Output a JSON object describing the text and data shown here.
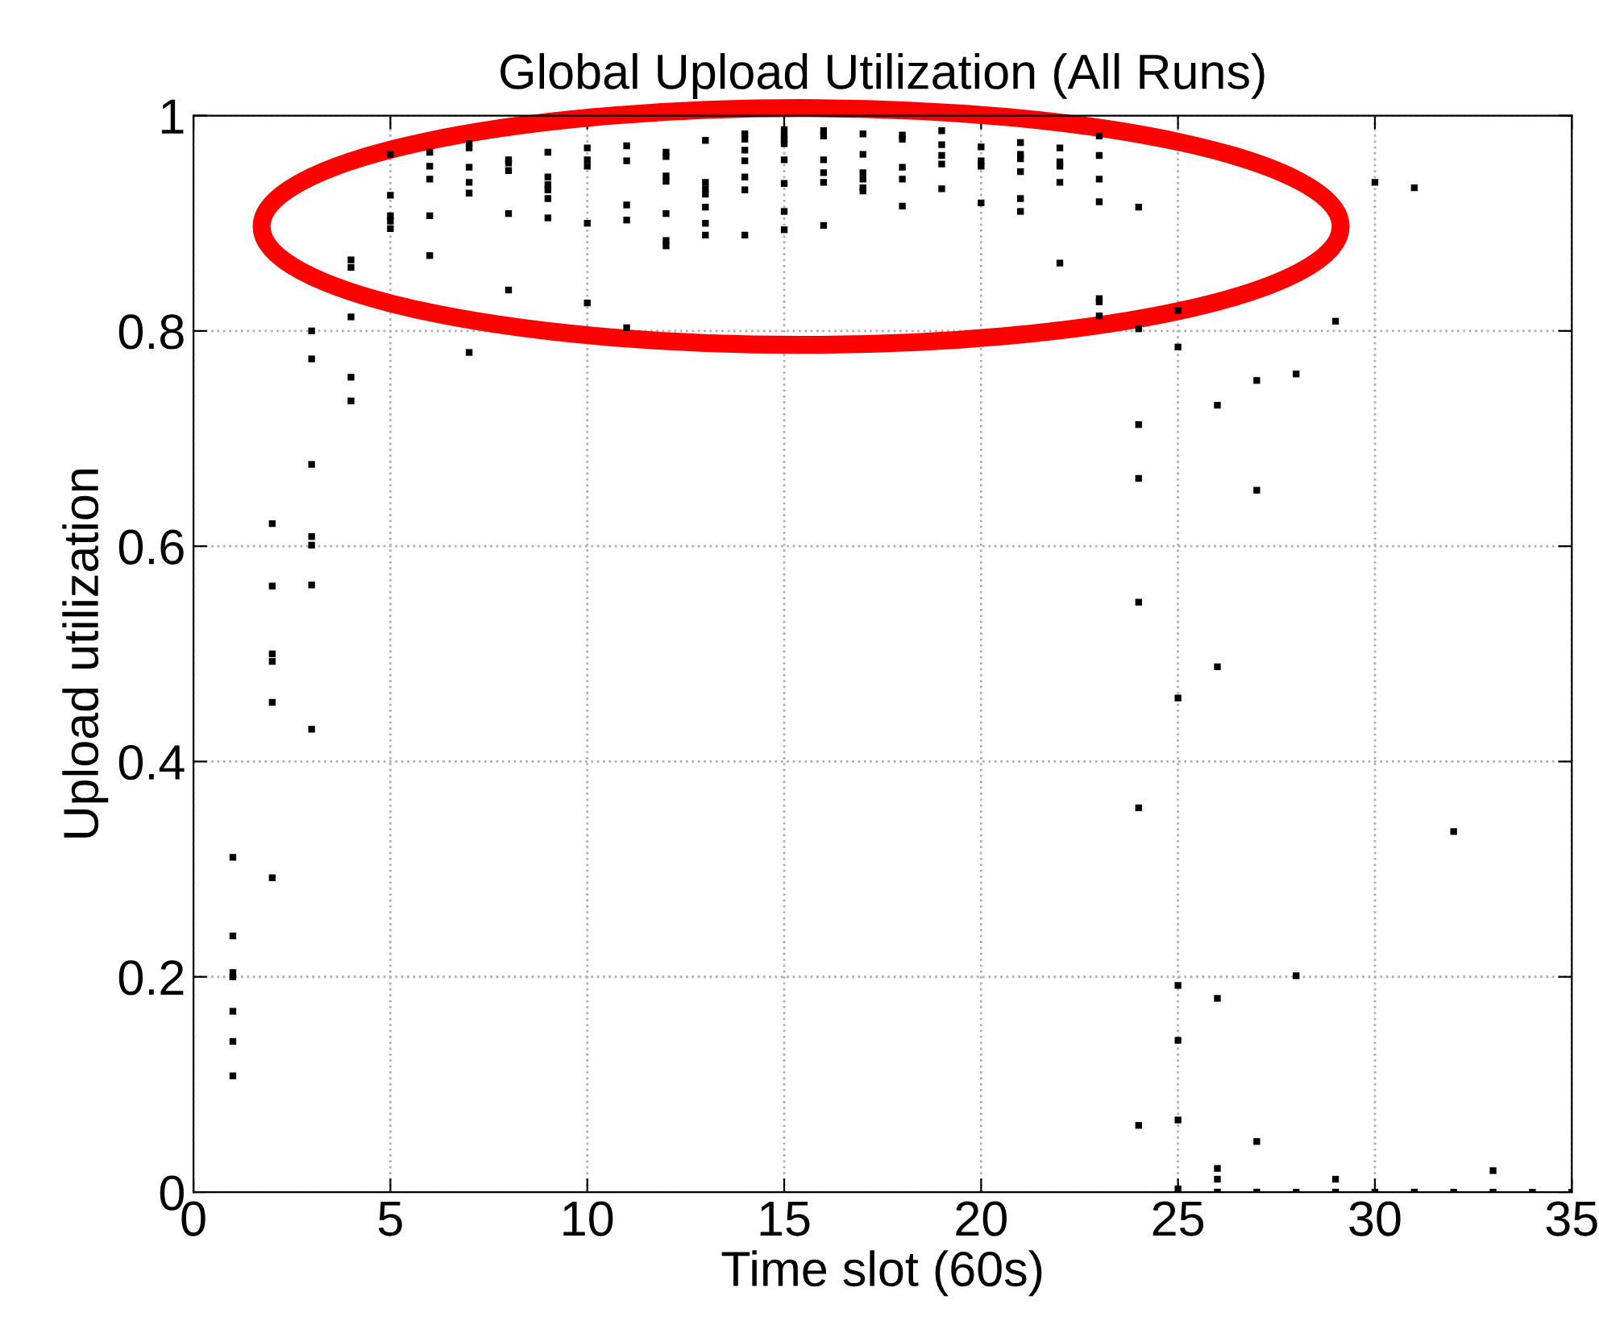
{
  "chart_data": {
    "type": "scatter",
    "title": "Global Upload Utilization (All Runs)",
    "xlabel": "Time slot (60s)",
    "ylabel": "Upload utilization",
    "xlim": [
      0,
      35
    ],
    "xticks": [
      0,
      5,
      10,
      15,
      20,
      25,
      30,
      35
    ],
    "ylim": [
      0,
      1
    ],
    "yticks": [
      0,
      0.2,
      0.4,
      0.6,
      0.8,
      1
    ],
    "grid": true,
    "marker": "square",
    "legend": false,
    "series": [
      {
        "color": "#000000",
        "x": [
          1,
          1,
          1,
          1,
          1,
          1,
          1,
          2,
          2,
          2,
          2,
          2,
          2,
          3,
          3,
          3,
          3,
          3,
          3,
          3,
          4,
          4,
          4,
          4,
          4,
          5,
          5,
          5,
          5,
          5,
          6,
          6,
          6,
          6,
          6,
          7,
          7,
          7,
          7,
          7,
          7,
          8,
          8,
          8,
          8,
          8,
          9,
          9,
          9,
          9,
          9,
          9,
          10,
          10,
          10,
          10,
          10,
          11,
          11,
          11,
          11,
          11,
          12,
          12,
          12,
          12,
          12,
          12,
          12,
          13,
          13,
          13,
          13,
          13,
          13,
          13,
          14,
          14,
          14,
          14,
          14,
          14,
          14,
          15,
          15,
          15,
          15,
          15,
          15,
          15,
          15,
          16,
          16,
          16,
          16,
          16,
          16,
          17,
          17,
          17,
          17,
          17,
          17,
          18,
          18,
          18,
          18,
          18,
          19,
          19,
          19,
          19,
          19,
          20,
          20,
          20,
          20,
          21,
          21,
          21,
          21,
          21,
          21,
          22,
          22,
          22,
          22,
          22,
          23,
          23,
          23,
          23,
          23,
          23,
          23,
          24,
          24,
          24,
          24,
          24,
          24,
          24,
          25,
          25,
          25,
          25,
          25,
          25,
          25,
          26,
          26,
          26,
          26,
          26,
          26,
          27,
          27,
          27,
          27,
          28,
          28,
          28,
          29,
          29,
          29,
          30,
          30,
          31,
          31,
          32,
          32,
          33,
          33,
          34,
          35
        ],
        "values": [
          0.311,
          0.238,
          0.204,
          0.2,
          0.168,
          0.14,
          0.108,
          0.621,
          0.563,
          0.5,
          0.493,
          0.455,
          0.292,
          0.8,
          0.774,
          0.676,
          0.609,
          0.601,
          0.564,
          0.43,
          0.866,
          0.859,
          0.813,
          0.757,
          0.735,
          0.964,
          0.926,
          0.907,
          0.902,
          0.895,
          0.966,
          0.953,
          0.941,
          0.907,
          0.87,
          0.974,
          0.97,
          0.952,
          0.938,
          0.928,
          0.78,
          0.959,
          0.956,
          0.949,
          0.909,
          0.838,
          0.966,
          0.943,
          0.936,
          0.931,
          0.923,
          0.905,
          0.97,
          0.959,
          0.953,
          0.9,
          0.826,
          0.972,
          0.958,
          0.917,
          0.903,
          0.803,
          0.966,
          0.962,
          0.944,
          0.939,
          0.909,
          0.884,
          0.879,
          0.977,
          0.938,
          0.932,
          0.927,
          0.915,
          0.9,
          0.889,
          0.983,
          0.978,
          0.968,
          0.958,
          0.943,
          0.931,
          0.889,
          0.987,
          0.982,
          0.978,
          0.974,
          0.959,
          0.937,
          0.911,
          0.894,
          0.986,
          0.981,
          0.959,
          0.947,
          0.938,
          0.898,
          0.983,
          0.964,
          0.947,
          0.941,
          0.933,
          0.93,
          0.982,
          0.978,
          0.952,
          0.941,
          0.916,
          0.986,
          0.973,
          0.963,
          0.955,
          0.932,
          0.971,
          0.958,
          0.953,
          0.919,
          0.975,
          0.964,
          0.96,
          0.948,
          0.923,
          0.911,
          0.97,
          0.957,
          0.953,
          0.938,
          0.863,
          0.981,
          0.963,
          0.941,
          0.92,
          0.83,
          0.827,
          0.814,
          0.915,
          0.802,
          0.713,
          0.663,
          0.548,
          0.357,
          0.062,
          0.819,
          0.785,
          0.459,
          0.192,
          0.141,
          0.067,
          0.003,
          0.731,
          0.488,
          0.18,
          0.022,
          0.012,
          0,
          0.754,
          0.652,
          0.047,
          0,
          0.76,
          0.201,
          0,
          0.809,
          0.012,
          0,
          0.938,
          0,
          0.933,
          0,
          0.335,
          0,
          0.02,
          0,
          0,
          0
        ]
      }
    ]
  }
}
